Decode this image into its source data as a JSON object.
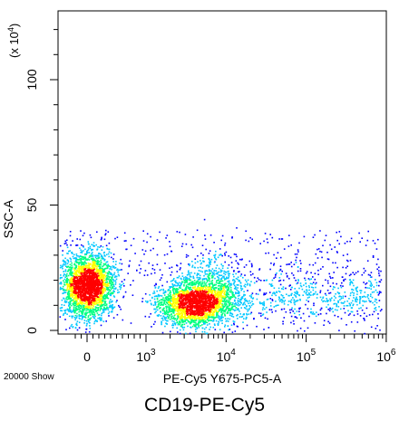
{
  "chart_data": {
    "type": "scatter",
    "title": "",
    "xlabel": "PE-Cy5 Y675-PC5-A",
    "ylabel": "SSC-A",
    "y_unit_note": "(x 10",
    "y_unit_exp": "4",
    "xscale": "biexponential",
    "xlim": [
      -300,
      1000000
    ],
    "ylim": [
      -3,
      128
    ],
    "x_ticks": [
      {
        "value": 0,
        "base": "0",
        "exp": ""
      },
      {
        "value": 1000,
        "base": "10",
        "exp": "3"
      },
      {
        "value": 10000,
        "base": "10",
        "exp": "4"
      },
      {
        "value": 100000,
        "base": "10",
        "exp": "5"
      },
      {
        "value": 1000000,
        "base": "10",
        "exp": "6"
      }
    ],
    "y_ticks": [
      {
        "value": 0,
        "label": "0"
      },
      {
        "value": 50,
        "label": "50"
      },
      {
        "value": 100,
        "label": "100"
      }
    ],
    "event_count_label": "20000 Show",
    "populations": [
      {
        "name": "",
        "x_center": 0,
        "y_center": 18,
        "events": 9000
      },
      {
        "name": "",
        "x_center": 3500,
        "y_center": 11,
        "events": 8000
      },
      {
        "name": "",
        "x_center": 60000,
        "y_center": 14,
        "events": 3000
      }
    ],
    "grid": false,
    "colormap": [
      "#0000ff",
      "#00c8ff",
      "#00ff80",
      "#ffff00",
      "#ff0000"
    ]
  },
  "caption": "CD19-PE-Cy5"
}
